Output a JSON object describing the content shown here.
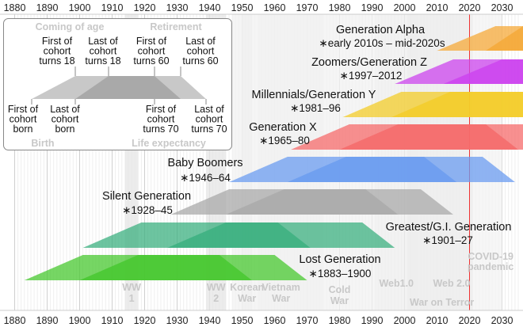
{
  "axis": {
    "start_year": 1880,
    "end_year": 2035,
    "ticks": [
      "1880",
      "1890",
      "1900",
      "1910",
      "1920",
      "1930",
      "1940",
      "1950",
      "1960",
      "1970",
      "1980",
      "1990",
      "2000",
      "2010",
      "2020",
      "2030"
    ]
  },
  "generations": [
    {
      "name": "Generation Alpha",
      "years": "∗early 2010s – mid-2020s",
      "color": "#f5a93a",
      "born": [
        2010,
        2025
      ]
    },
    {
      "name": "Zoomers/Generation Z",
      "years": "∗1997–2012",
      "color": "#cc44ee",
      "born": [
        1997,
        2012
      ]
    },
    {
      "name": "Millennials/Generation Y",
      "years": "∗1981–96",
      "color": "#f3cc2a",
      "born": [
        1981,
        1996
      ]
    },
    {
      "name": "Generation X",
      "years": "∗1965–80",
      "color": "#f56b6b",
      "born": [
        1965,
        1980
      ]
    },
    {
      "name": "Baby Boomers",
      "years": "∗1946–64",
      "color": "#6b9cf0",
      "born": [
        1946,
        1964
      ]
    },
    {
      "name": "Silent Generation",
      "years": "∗1928–45",
      "color": "#aaaaaa",
      "born": [
        1928,
        1945
      ]
    },
    {
      "name": "Greatest/G.I. Generation",
      "years": "∗1901–27",
      "color": "#3cb080",
      "born": [
        1901,
        1927
      ]
    },
    {
      "name": "Lost Generation",
      "years": "∗1883–1900",
      "color": "#48c830",
      "born": [
        1883,
        1900
      ]
    }
  ],
  "events": [
    {
      "lines": [
        "WW",
        "1"
      ],
      "range": [
        1914,
        1918
      ]
    },
    {
      "lines": [
        "WW",
        "2"
      ],
      "range": [
        1939,
        1945
      ]
    },
    {
      "lines": [
        "Korean",
        "War"
      ],
      "range": [
        1950,
        1953
      ]
    },
    {
      "lines": [
        "Vietnam",
        "War"
      ],
      "range": [
        1955,
        1975
      ]
    },
    {
      "lines": [
        "Cold",
        "War"
      ],
      "range": [
        1947,
        1991
      ]
    },
    {
      "lines": [
        "Web1.0"
      ],
      "range": [
        1991,
        2004
      ]
    },
    {
      "lines": [
        "Web 2.0"
      ],
      "range": [
        2004,
        2030
      ]
    },
    {
      "lines": [
        "War on Terror"
      ],
      "range": [
        2001,
        2021
      ]
    }
  ],
  "covid": {
    "lines": [
      "COVID-19",
      "pandemic"
    ],
    "year": 2020
  },
  "legend": {
    "coming_of_age": "Coming of age",
    "retirement": "Retirement",
    "birth": "Birth",
    "life_expectancy": "Life expectancy",
    "top_labels": [
      [
        "First of",
        "cohort",
        "turns 18"
      ],
      [
        "Last of",
        "cohort",
        "turns 18"
      ],
      [
        "First of",
        "cohort",
        "turns 60"
      ],
      [
        "Last of",
        "cohort",
        "turns 60"
      ]
    ],
    "bottom_labels": [
      [
        "First of",
        "cohort",
        "born"
      ],
      [
        "Last of",
        "cohort",
        "born"
      ],
      [
        "First of",
        "cohort",
        "turns 70"
      ],
      [
        "Last of",
        "cohort",
        "turns 70"
      ]
    ]
  }
}
